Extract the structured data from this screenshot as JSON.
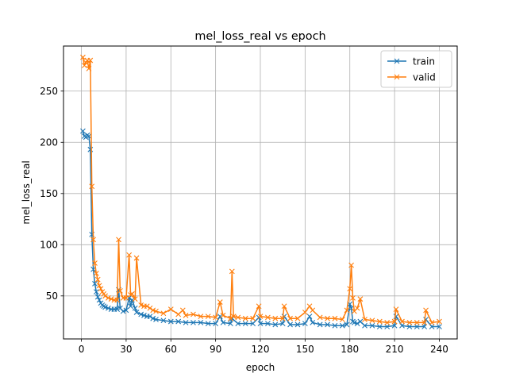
{
  "chart_data": {
    "type": "line",
    "title": "mel_loss_real vs epoch",
    "xlabel": "epoch",
    "ylabel": "mel_loss_real",
    "xlim": [
      -12,
      252
    ],
    "ylim": [
      8,
      294
    ],
    "xticks": [
      0,
      30,
      60,
      90,
      120,
      150,
      180,
      210,
      240
    ],
    "yticks": [
      50,
      100,
      150,
      200,
      250
    ],
    "grid": true,
    "legend": "top-right",
    "marker": "x",
    "series": [
      {
        "name": "train",
        "color": "#1f77b4",
        "x": [
          1,
          2,
          3,
          4,
          5,
          6,
          7,
          8,
          9,
          10,
          11,
          12,
          13,
          14,
          15,
          16,
          18,
          20,
          22,
          24,
          25,
          26,
          28,
          30,
          32,
          33,
          34,
          36,
          37,
          40,
          42,
          44,
          46,
          48,
          50,
          55,
          60,
          65,
          70,
          75,
          80,
          85,
          90,
          93,
          95,
          100,
          101,
          105,
          110,
          115,
          119,
          120,
          125,
          130,
          135,
          136,
          140,
          145,
          150,
          153,
          155,
          160,
          165,
          170,
          175,
          178,
          180,
          181,
          182,
          183,
          185,
          187,
          190,
          195,
          200,
          205,
          210,
          211,
          215,
          220,
          225,
          230,
          231,
          235,
          240
        ],
        "y": [
          211,
          206,
          205,
          207,
          206,
          193,
          110,
          76,
          62,
          54,
          49,
          46,
          43,
          41,
          40,
          39,
          38,
          37,
          37,
          37,
          56,
          38,
          35,
          36,
          48,
          40,
          46,
          38,
          34,
          32,
          31,
          30,
          30,
          28,
          27,
          26,
          25,
          25,
          24,
          24,
          24,
          23,
          23,
          30,
          24,
          23,
          28,
          23,
          23,
          23,
          29,
          23,
          23,
          22,
          23,
          30,
          22,
          22,
          23,
          30,
          24,
          22,
          22,
          21,
          21,
          22,
          42,
          38,
          25,
          24,
          23,
          25,
          21,
          21,
          20,
          20,
          21,
          30,
          21,
          20,
          20,
          20,
          27,
          20,
          20
        ]
      },
      {
        "name": "valid",
        "color": "#ff7f0e",
        "x": [
          1,
          2,
          3,
          4,
          5,
          6,
          7,
          8,
          9,
          10,
          11,
          12,
          13,
          14,
          15,
          16,
          18,
          20,
          22,
          24,
          25,
          26,
          28,
          30,
          32,
          33,
          34,
          36,
          37,
          40,
          42,
          44,
          46,
          48,
          50,
          55,
          60,
          65,
          68,
          70,
          75,
          80,
          85,
          90,
          93,
          95,
          100,
          101,
          102,
          105,
          110,
          115,
          119,
          120,
          125,
          130,
          135,
          136,
          140,
          145,
          150,
          153,
          155,
          160,
          165,
          170,
          175,
          178,
          180,
          181,
          182,
          183,
          185,
          187,
          190,
          195,
          200,
          205,
          210,
          211,
          215,
          220,
          225,
          230,
          231,
          235,
          240
        ],
        "y": [
          283,
          275,
          278,
          280,
          272,
          280,
          157,
          105,
          82,
          72,
          66,
          60,
          57,
          54,
          52,
          50,
          48,
          47,
          46,
          46,
          105,
          55,
          48,
          48,
          90,
          51,
          52,
          47,
          87,
          41,
          40,
          40,
          38,
          36,
          35,
          33,
          37,
          32,
          36,
          31,
          32,
          30,
          30,
          29,
          44,
          31,
          28,
          74,
          30,
          29,
          28,
          28,
          40,
          30,
          29,
          28,
          28,
          40,
          28,
          28,
          34,
          40,
          36,
          29,
          28,
          28,
          27,
          36,
          57,
          80,
          48,
          35,
          38,
          47,
          27,
          26,
          25,
          24,
          25,
          37,
          25,
          24,
          24,
          24,
          36,
          24,
          25
        ]
      }
    ]
  }
}
